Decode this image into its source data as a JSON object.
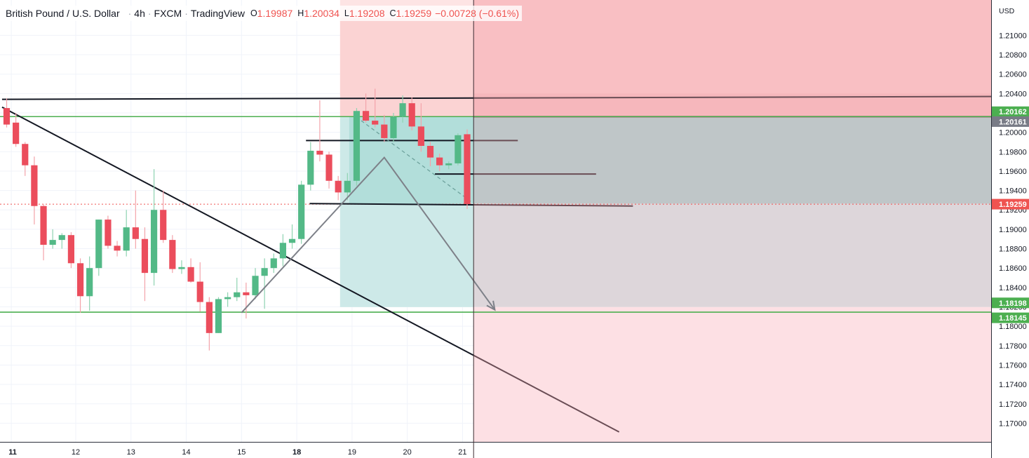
{
  "legend": {
    "symbol": "British Pound / U.S. Dollar",
    "interval": "4h",
    "exchange": "FXCM",
    "source": "TradingView",
    "o_label": "O",
    "o": "1.19987",
    "h_label": "H",
    "h": "1.20034",
    "l_label": "L",
    "l": "1.19208",
    "c_label": "C",
    "c": "1.19259",
    "change": "−0.00728 (−0.61%)"
  },
  "colors": {
    "up": "#26a69a",
    "up_body": "#53b987",
    "down": "#ef5350",
    "down_body": "#eb4d5c",
    "stop_zone": "#f9a3a8",
    "target_zone": "#9ad9d5",
    "green_line": "#4caf50"
  },
  "chart_data": {
    "type": "candlestick",
    "currency_label": "USD",
    "y_range": [
      1.1688,
      1.2135
    ],
    "y_ticks": [
      "1.21000",
      "1.20800",
      "1.20600",
      "1.20400",
      "1.20200",
      "1.20000",
      "1.19800",
      "1.19600",
      "1.19400",
      "1.19200",
      "1.19000",
      "1.18800",
      "1.18600",
      "1.18400",
      "1.18200",
      "1.18000",
      "1.17800",
      "1.17600",
      "1.17400",
      "1.17200",
      "1.17000"
    ],
    "x_labels": [
      {
        "label": "11",
        "bar": 0.5
      },
      {
        "label": "12",
        "bar": 7.5
      },
      {
        "label": "13",
        "bar": 13.5
      },
      {
        "label": "14",
        "bar": 19.5
      },
      {
        "label": "15",
        "bar": 25.5
      },
      {
        "label": "18",
        "bar": 31.5
      },
      {
        "label": "19",
        "bar": 37.5
      },
      {
        "label": "20",
        "bar": 43.5
      },
      {
        "label": "21",
        "bar": 49.5
      }
    ],
    "bars_total": 110,
    "candles": [
      {
        "o": 1.2025,
        "h": 1.2035,
        "l": 1.2005,
        "c": 1.2008
      },
      {
        "o": 1.201,
        "h": 1.202,
        "l": 1.1985,
        "c": 1.1988
      },
      {
        "o": 1.1988,
        "h": 1.199,
        "l": 1.1955,
        "c": 1.1966
      },
      {
        "o": 1.1966,
        "h": 1.1975,
        "l": 1.1905,
        "c": 1.1924
      },
      {
        "o": 1.1924,
        "h": 1.1926,
        "l": 1.1868,
        "c": 1.1884
      },
      {
        "o": 1.1884,
        "h": 1.19,
        "l": 1.188,
        "c": 1.1889
      },
      {
        "o": 1.1889,
        "h": 1.1896,
        "l": 1.188,
        "c": 1.1894
      },
      {
        "o": 1.1894,
        "h": 1.1897,
        "l": 1.186,
        "c": 1.1865
      },
      {
        "o": 1.1865,
        "h": 1.187,
        "l": 1.1814,
        "c": 1.1831
      },
      {
        "o": 1.1831,
        "h": 1.1872,
        "l": 1.1816,
        "c": 1.186
      },
      {
        "o": 1.186,
        "h": 1.191,
        "l": 1.1852,
        "c": 1.191
      },
      {
        "o": 1.191,
        "h": 1.1914,
        "l": 1.188,
        "c": 1.1883
      },
      {
        "o": 1.1883,
        "h": 1.1888,
        "l": 1.1872,
        "c": 1.1878
      },
      {
        "o": 1.1878,
        "h": 1.192,
        "l": 1.1872,
        "c": 1.1902
      },
      {
        "o": 1.1902,
        "h": 1.194,
        "l": 1.188,
        "c": 1.189
      },
      {
        "o": 1.189,
        "h": 1.1902,
        "l": 1.1826,
        "c": 1.1855
      },
      {
        "o": 1.1855,
        "h": 1.1962,
        "l": 1.1842,
        "c": 1.192
      },
      {
        "o": 1.192,
        "h": 1.194,
        "l": 1.1886,
        "c": 1.1889
      },
      {
        "o": 1.1889,
        "h": 1.1894,
        "l": 1.1855,
        "c": 1.1859
      },
      {
        "o": 1.1859,
        "h": 1.1868,
        "l": 1.1854,
        "c": 1.1861
      },
      {
        "o": 1.1861,
        "h": 1.187,
        "l": 1.1845,
        "c": 1.1846
      },
      {
        "o": 1.1846,
        "h": 1.1866,
        "l": 1.1815,
        "c": 1.1825
      },
      {
        "o": 1.1825,
        "h": 1.183,
        "l": 1.1775,
        "c": 1.1793
      },
      {
        "o": 1.1793,
        "h": 1.183,
        "l": 1.1793,
        "c": 1.1828
      },
      {
        "o": 1.1828,
        "h": 1.1835,
        "l": 1.182,
        "c": 1.183
      },
      {
        "o": 1.183,
        "h": 1.185,
        "l": 1.1826,
        "c": 1.1835
      },
      {
        "o": 1.1835,
        "h": 1.1845,
        "l": 1.1808,
        "c": 1.1832
      },
      {
        "o": 1.1832,
        "h": 1.186,
        "l": 1.1828,
        "c": 1.1852
      },
      {
        "o": 1.1852,
        "h": 1.187,
        "l": 1.1818,
        "c": 1.186
      },
      {
        "o": 1.186,
        "h": 1.1875,
        "l": 1.1855,
        "c": 1.187
      },
      {
        "o": 1.187,
        "h": 1.1895,
        "l": 1.1862,
        "c": 1.1886
      },
      {
        "o": 1.1886,
        "h": 1.1905,
        "l": 1.188,
        "c": 1.189
      },
      {
        "o": 1.189,
        "h": 1.195,
        "l": 1.1885,
        "c": 1.1946
      },
      {
        "o": 1.1946,
        "h": 1.199,
        "l": 1.194,
        "c": 1.1981
      },
      {
        "o": 1.1981,
        "h": 1.2033,
        "l": 1.197,
        "c": 1.1977
      },
      {
        "o": 1.1977,
        "h": 1.198,
        "l": 1.1942,
        "c": 1.195
      },
      {
        "o": 1.195,
        "h": 1.1955,
        "l": 1.193,
        "c": 1.1938
      },
      {
        "o": 1.1938,
        "h": 1.1958,
        "l": 1.193,
        "c": 1.195
      },
      {
        "o": 1.195,
        "h": 1.2025,
        "l": 1.1945,
        "c": 1.2022
      },
      {
        "o": 1.2022,
        "h": 1.204,
        "l": 1.201,
        "c": 1.2012
      },
      {
        "o": 1.2012,
        "h": 1.2045,
        "l": 1.2005,
        "c": 1.2008
      },
      {
        "o": 1.2008,
        "h": 1.2018,
        "l": 1.199,
        "c": 1.1994
      },
      {
        "o": 1.1994,
        "h": 1.202,
        "l": 1.199,
        "c": 1.2016
      },
      {
        "o": 1.2016,
        "h": 1.2038,
        "l": 1.201,
        "c": 1.203
      },
      {
        "o": 1.203,
        "h": 1.2036,
        "l": 1.2002,
        "c": 1.2006
      },
      {
        "o": 1.2006,
        "h": 1.203,
        "l": 1.198,
        "c": 1.1986
      },
      {
        "o": 1.1986,
        "h": 1.199,
        "l": 1.1965,
        "c": 1.1974
      },
      {
        "o": 1.1974,
        "h": 1.1978,
        "l": 1.196,
        "c": 1.1966
      },
      {
        "o": 1.1966,
        "h": 1.197,
        "l": 1.1962,
        "c": 1.1968
      },
      {
        "o": 1.1968,
        "h": 1.1999,
        "l": 1.1966,
        "c": 1.1997
      },
      {
        "o": 1.1998,
        "h": 1.2003,
        "l": 1.1921,
        "c": 1.1926
      }
    ],
    "horizontal_lines": [
      {
        "name": "resistance-line-green",
        "price": 1.20162,
        "color": "#4caf50"
      },
      {
        "name": "support-line-green",
        "price": 1.18145,
        "color": "#4caf50"
      },
      {
        "name": "last-price-line",
        "price": 1.19259,
        "color": "#ef5350",
        "dashed": true
      }
    ],
    "price_labels": [
      {
        "name": "label-1-20162",
        "text": "1.20162",
        "price": 1.20162,
        "bg": "#4caf50"
      },
      {
        "name": "label-1-20161",
        "text": "1.20161",
        "price": 1.20161,
        "bg": "#787b86"
      },
      {
        "name": "label-1-19259",
        "text": "1.19259",
        "price": 1.19259,
        "bg": "#ef5350"
      },
      {
        "name": "label-1-18198",
        "text": "1.18198",
        "price": 1.18198,
        "bg": "#4caf50"
      },
      {
        "name": "label-1-18145",
        "text": "1.18145",
        "price": 1.18145,
        "bg": "#4caf50"
      }
    ],
    "trendlines": [
      {
        "name": "top-resistance-trendline",
        "p1": [
          -0.5,
          1.2034
        ],
        "p2": [
          110,
          1.2037
        ],
        "color": "#131722",
        "faded_after": 50.7
      },
      {
        "name": "descending-trendline",
        "p1": [
          -0.5,
          1.2026
        ],
        "p2": [
          66.5,
          1.1691
        ],
        "color": "#131722",
        "faded_after": 50.7
      },
      {
        "name": "level-1-19915",
        "p1": [
          32.5,
          1.19915
        ],
        "p2": [
          55.5,
          1.19915
        ],
        "color": "#131722",
        "faded_after": 50.7
      },
      {
        "name": "level-1-19570",
        "p1": [
          46.5,
          1.1957
        ],
        "p2": [
          64,
          1.1957
        ],
        "color": "#131722",
        "faded_after": 50.7
      },
      {
        "name": "level-1-19265",
        "p1": [
          32.9,
          1.19265
        ],
        "p2": [
          68,
          1.1924
        ],
        "color": "#131722",
        "faded_after": 50.7
      }
    ],
    "pattern_path": [
      {
        "x": 25.5,
        "price": 1.1814
      },
      {
        "x": 41.0,
        "price": 1.1974
      },
      {
        "x": 53.0,
        "price": 1.1817
      }
    ],
    "dashed_diagonal": {
      "p1": [
        38.5,
        1.2012
      ],
      "p2": [
        50.5,
        1.1928
      ]
    },
    "position_tool": {
      "start_bar": 36.2,
      "entry": 1.20161,
      "stop": 1.2118,
      "target": 1.18198
    },
    "time_cursor_bar": 50.7
  }
}
